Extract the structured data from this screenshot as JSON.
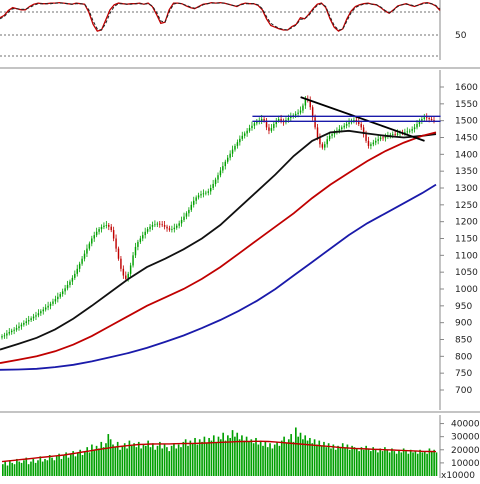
{
  "chart_data": {
    "type": "candlestick",
    "panels": [
      {
        "id": "oscillator",
        "type": "line",
        "y_ticks": [
          "50"
        ],
        "reference_levels": [
          "upper",
          "middle",
          "lower"
        ],
        "series": [
          {
            "id": "main",
            "color": "#c00000",
            "style": "solid",
            "values": [
              72,
              76,
              85,
              90,
              88,
              86,
              86,
              92,
              96,
              98,
              97,
              97,
              98,
              98,
              99,
              98,
              97,
              96,
              98,
              97,
              96,
              82,
              60,
              48,
              50,
              68,
              86,
              95,
              98,
              97,
              96,
              97,
              97,
              98,
              96,
              98,
              92,
              78,
              62,
              64,
              86,
              98,
              98,
              97,
              93,
              90,
              88,
              92,
              96,
              97,
              99,
              98,
              99,
              98,
              96,
              94,
              92,
              96,
              98,
              97,
              97,
              94,
              86,
              70,
              58,
              55,
              52,
              50,
              50,
              56,
              60,
              72,
              70,
              78,
              88,
              96,
              98,
              90,
              70,
              55,
              48,
              52,
              70,
              84,
              92,
              95,
              97,
              98,
              96,
              95,
              90,
              84,
              80,
              86,
              93,
              95,
              97,
              94,
              92,
              95,
              98,
              99,
              97,
              93,
              85
            ]
          },
          {
            "id": "signal",
            "color": "#222222",
            "style": "dashed",
            "values": [
              70,
              74,
              82,
              88,
              88,
              87,
              87,
              90,
              94,
              97,
              97,
              97,
              97,
              98,
              98,
              98,
              97,
              96,
              97,
              97,
              96,
              86,
              66,
              52,
              50,
              62,
              80,
              92,
              97,
              97,
              96,
              96,
              97,
              97,
              96,
              97,
              93,
              82,
              66,
              64,
              82,
              96,
              98,
              97,
              94,
              91,
              89,
              91,
              95,
              97,
              98,
              98,
              98,
              98,
              96,
              94,
              93,
              95,
              97,
              97,
              97,
              95,
              88,
              74,
              62,
              57,
              53,
              51,
              50,
              54,
              59,
              69,
              70,
              76,
              86,
              94,
              97,
              92,
              74,
              58,
              50,
              51,
              66,
              81,
              90,
              94,
              96,
              97,
              96,
              95,
              91,
              85,
              81,
              85,
              92,
              95,
              96,
              95,
              93,
              94,
              97,
              98,
              97,
              94,
              87
            ]
          }
        ]
      },
      {
        "id": "price",
        "y_ticks": [
          "1600",
          "1550",
          "1500",
          "1450",
          "1400",
          "1350",
          "1300",
          "1250",
          "1200",
          "1150",
          "1100",
          "1050",
          "1000",
          "950",
          "900",
          "850",
          "800",
          "750",
          "700"
        ],
        "ylim": [
          650,
          1630
        ],
        "closes": [
          860,
          862,
          868,
          872,
          876,
          879,
          884,
          889,
          894,
          899,
          904,
          908,
          913,
          918,
          922,
          928,
          934,
          939,
          945,
          950,
          956,
          963,
          970,
          977,
          985,
          993,
          1002,
          1012,
          1022,
          1033,
          1045,
          1060,
          1075,
          1090,
          1105,
          1120,
          1135,
          1150,
          1160,
          1170,
          1178,
          1184,
          1188,
          1190,
          1185,
          1175,
          1150,
          1120,
          1090,
          1060,
          1040,
          1030,
          1045,
          1070,
          1100,
          1125,
          1140,
          1150,
          1160,
          1170,
          1178,
          1185,
          1190,
          1192,
          1194,
          1192,
          1190,
          1185,
          1180,
          1176,
          1178,
          1182,
          1188,
          1195,
          1205,
          1215,
          1225,
          1235,
          1250,
          1262,
          1272,
          1278,
          1282,
          1284,
          1286,
          1290,
          1300,
          1312,
          1325,
          1338,
          1352,
          1365,
          1378,
          1390,
          1402,
          1414,
          1425,
          1436,
          1446,
          1455,
          1462,
          1470,
          1478,
          1485,
          1492,
          1497,
          1500,
          1505,
          1500,
          1480,
          1470,
          1478,
          1490,
          1500,
          1505,
          1500,
          1495,
          1502,
          1508,
          1512,
          1516,
          1520,
          1524,
          1530,
          1545,
          1565,
          1560,
          1540,
          1510,
          1480,
          1450,
          1430,
          1420,
          1430,
          1445,
          1455,
          1460,
          1465,
          1470,
          1475,
          1480,
          1485,
          1490,
          1495,
          1500,
          1502,
          1498,
          1490,
          1480,
          1460,
          1440,
          1425,
          1430,
          1435,
          1440,
          1445,
          1450,
          1448,
          1452,
          1455,
          1458,
          1460,
          1458,
          1462,
          1465,
          1463,
          1466,
          1468,
          1470,
          1475,
          1480,
          1490,
          1500,
          1505,
          1510,
          1508,
          1505,
          1502,
          1500
        ],
        "moving_averages": [
          {
            "id": "ma-black",
            "color": "#111111",
            "x": [
              0,
              8,
              16,
              24,
              32,
              40,
              48,
              56,
              64,
              72,
              80,
              88,
              96,
              104,
              112,
              120,
              128,
              136,
              144,
              152,
              160,
              168,
              176,
              184,
              190
            ],
            "values": [
              820,
              837,
              855,
              880,
              912,
              950,
              990,
              1030,
              1065,
              1090,
              1118,
              1150,
              1190,
              1240,
              1290,
              1340,
              1395,
              1440,
              1465,
              1470,
              1462,
              1455,
              1450,
              1455,
              1460
            ]
          },
          {
            "id": "ma-red",
            "color": "#c00000",
            "x": [
              0,
              8,
              16,
              24,
              32,
              40,
              48,
              56,
              64,
              72,
              80,
              88,
              96,
              104,
              112,
              120,
              128,
              136,
              144,
              152,
              160,
              168,
              176,
              184,
              190
            ],
            "values": [
              780,
              790,
              800,
              815,
              835,
              860,
              890,
              920,
              950,
              975,
              1000,
              1030,
              1065,
              1105,
              1145,
              1185,
              1225,
              1270,
              1310,
              1345,
              1380,
              1410,
              1435,
              1455,
              1465
            ]
          },
          {
            "id": "ma-blue",
            "color": "#1a1aaa",
            "x": [
              0,
              8,
              16,
              24,
              32,
              40,
              48,
              56,
              64,
              72,
              80,
              88,
              96,
              104,
              112,
              120,
              128,
              136,
              144,
              152,
              160,
              168,
              176,
              184,
              190
            ],
            "values": [
              760,
              761,
              763,
              768,
              775,
              785,
              797,
              810,
              825,
              843,
              862,
              884,
              908,
              935,
              965,
              1000,
              1040,
              1080,
              1120,
              1160,
              1195,
              1225,
              1255,
              1285,
              1310
            ]
          }
        ],
        "trendlines": [
          {
            "id": "resistance-line",
            "color": "#000000",
            "x": [
              131,
              185
            ],
            "y": [
              1570,
              1440
            ]
          },
          {
            "id": "channel-upper",
            "color": "#1a1aaa",
            "x": [
              110,
              192
            ],
            "y": [
              1513,
              1513
            ]
          },
          {
            "id": "channel-lower",
            "color": "#1a1aaa",
            "x": [
              110,
              192
            ],
            "y": [
              1498,
              1498
            ]
          }
        ]
      },
      {
        "id": "volume",
        "type": "bar",
        "y_ticks": [
          "40000",
          "30000",
          "20000",
          "10000"
        ],
        "ylim": [
          0,
          45000
        ],
        "unit": "x10000",
        "bar_color": "#00a000",
        "ma_color": "#c00000",
        "values": [
          9000,
          11000,
          8000,
          12000,
          10000,
          9000,
          13000,
          11000,
          10000,
          12000,
          14000,
          9000,
          11000,
          13000,
          10000,
          12000,
          15000,
          11000,
          13000,
          12000,
          16000,
          14000,
          12000,
          15000,
          17000,
          13000,
          16000,
          18000,
          14000,
          17000,
          19000,
          15000,
          18000,
          20000,
          16000,
          19000,
          22000,
          18000,
          24000,
          20000,
          23000,
          21000,
          26000,
          22000,
          25000,
          32000,
          28000,
          24000,
          22000,
          26000,
          20000,
          23000,
          25000,
          21000,
          27000,
          23000,
          25000,
          22000,
          26000,
          21000,
          24000,
          23000,
          27000,
          22000,
          25000,
          20000,
          23000,
          26000,
          21000,
          24000,
          22000,
          19000,
          23000,
          25000,
          21000,
          24000,
          22000,
          26000,
          28000,
          23000,
          27000,
          25000,
          29000,
          24000,
          28000,
          26000,
          30000,
          25000,
          29000,
          27000,
          31000,
          26000,
          30000,
          28000,
          33000,
          27000,
          31000,
          29000,
          35000,
          30000,
          33000,
          28000,
          31000,
          27000,
          30000,
          26000,
          28000,
          25000,
          29000,
          24000,
          27000,
          23000,
          26000,
          22000,
          25000,
          21000,
          24000,
          26000,
          23000,
          27000,
          30000,
          25000,
          28000,
          32000,
          26000,
          37000,
          30000,
          33000,
          28000,
          31000,
          27000,
          29000,
          25000,
          28000,
          24000,
          27000,
          23000,
          26000,
          22000,
          25000,
          21000,
          24000,
          20000,
          23000,
          22000,
          25000,
          21000,
          24000,
          20000,
          23000,
          22000,
          21000,
          19000,
          22000,
          20000,
          23000,
          21000,
          19000,
          22000,
          20000,
          18000,
          21000,
          19000,
          22000,
          20000,
          18000,
          21000,
          19000,
          17000,
          20000,
          18000,
          21000,
          19000,
          17000,
          20000,
          18000,
          19000,
          17000,
          20000,
          18000,
          19000,
          17000,
          21000,
          19000,
          20000,
          18000
        ],
        "ma_values": [
          11000,
          11500,
          12000,
          12500,
          13000,
          13500,
          14000,
          14500,
          15000,
          15500,
          16000,
          16800,
          17500,
          18300,
          19000,
          19800,
          20500,
          21200,
          22000,
          22500,
          23000,
          23500,
          24000,
          24200,
          24400,
          24500,
          24500,
          24500,
          24600,
          24700,
          24800,
          24900,
          25000,
          25200,
          25400,
          25600,
          25800,
          26000,
          26200,
          26300,
          26400,
          26500,
          26500,
          26300,
          26000,
          25600,
          25200,
          24800,
          24400,
          24000,
          23600,
          23200,
          22800,
          22400,
          22000,
          21600,
          21300,
          21000,
          20800,
          20600,
          20400,
          20200,
          20000,
          19800,
          19600,
          19400,
          19200,
          19000,
          18800,
          18700,
          18600
        ]
      }
    ]
  }
}
